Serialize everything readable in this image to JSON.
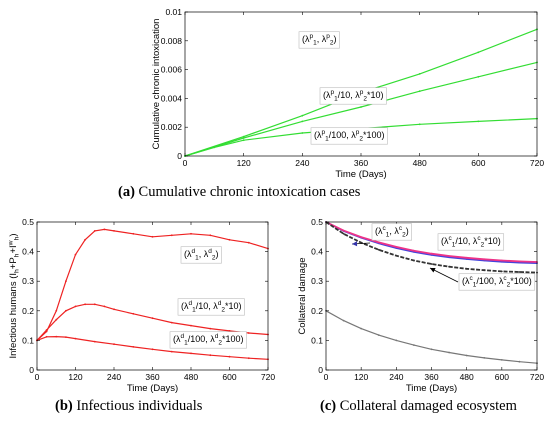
{
  "chart_data": [
    {
      "panel": "a",
      "type": "line",
      "caption_letter": "(a)",
      "caption_text": "Cumulative chronic intoxication cases",
      "xlabel": "Time (Days)",
      "ylabel": "Cumulative chronic intoxication",
      "xlim": [
        0,
        720
      ],
      "ylim": [
        0,
        0.01
      ],
      "xticks": [
        "0",
        "120",
        "240",
        "360",
        "480",
        "600",
        "720"
      ],
      "yticks": [
        "0",
        "0.002",
        "0.004",
        "0.006",
        "0.008",
        "0.01"
      ],
      "grid": false,
      "series": [
        {
          "label": {
            "pre": "(λ",
            "sup1": "p",
            "sub1": "1",
            "mid": ", λ",
            "sup2": "p",
            "sub2": "2",
            "post": ")"
          },
          "color": "#33dd33",
          "x": [
            0,
            120,
            240,
            360,
            480,
            600,
            720
          ],
          "y": [
            0,
            0.00135,
            0.0028,
            0.0044,
            0.0057,
            0.0072,
            0.0088
          ]
        },
        {
          "label": {
            "pre": "(λ",
            "sup1": "p",
            "sub1": "1",
            "mid": "/10, λ",
            "sup2": "p",
            "sub2": "2",
            "post": "*10)"
          },
          "color": "#33dd33",
          "x": [
            0,
            120,
            240,
            360,
            480,
            600,
            720
          ],
          "y": [
            0,
            0.00125,
            0.0024,
            0.0034,
            0.0045,
            0.0055,
            0.0065
          ]
        },
        {
          "label": {
            "pre": "(λ",
            "sup1": "p",
            "sub1": "1",
            "mid": "/100, λ",
            "sup2": "p",
            "sub2": "2",
            "post": "*100)"
          },
          "color": "#33dd33",
          "x": [
            0,
            60,
            120,
            240,
            360,
            480,
            600,
            720
          ],
          "y": [
            0,
            0.0006,
            0.0011,
            0.0016,
            0.0019,
            0.0022,
            0.0024,
            0.0026
          ]
        }
      ]
    },
    {
      "panel": "b",
      "type": "line",
      "caption_letter": "(b)",
      "caption_text": "Infectious individuals",
      "xlabel": "Time (Days)",
      "ylabel": "Infectious humans (I_h+P_h+I_h^w)",
      "xlim": [
        0,
        720
      ],
      "ylim": [
        0,
        0.5
      ],
      "xticks": [
        "0",
        "120",
        "240",
        "360",
        "480",
        "600",
        "720"
      ],
      "yticks": [
        "0",
        "0.1",
        "0.2",
        "0.3",
        "0.4",
        "0.5"
      ],
      "grid": false,
      "series": [
        {
          "label": {
            "pre": "(λ",
            "sup1": "d",
            "sub1": "1",
            "mid": ", λ",
            "sup2": "d",
            "sub2": "2",
            "post": ")"
          },
          "color": "#ee2222",
          "x": [
            0,
            30,
            60,
            90,
            120,
            150,
            180,
            210,
            240,
            300,
            360,
            420,
            480,
            540,
            600,
            660,
            720
          ],
          "y": [
            0.1,
            0.13,
            0.2,
            0.3,
            0.39,
            0.44,
            0.47,
            0.475,
            0.47,
            0.46,
            0.45,
            0.455,
            0.46,
            0.455,
            0.44,
            0.43,
            0.41
          ]
        },
        {
          "label": {
            "pre": "(λ",
            "sup1": "d",
            "sub1": "1",
            "mid": "/10, λ",
            "sup2": "d",
            "sub2": "2",
            "post": "*10)"
          },
          "color": "#ee2222",
          "x": [
            0,
            30,
            60,
            90,
            120,
            150,
            180,
            210,
            240,
            300,
            360,
            420,
            480,
            540,
            600,
            660,
            720
          ],
          "y": [
            0.1,
            0.135,
            0.17,
            0.2,
            0.215,
            0.222,
            0.222,
            0.215,
            0.205,
            0.19,
            0.175,
            0.16,
            0.15,
            0.14,
            0.132,
            0.125,
            0.12
          ]
        },
        {
          "label": {
            "pre": "(λ",
            "sup1": "d",
            "sub1": "1",
            "mid": "/100, λ",
            "sup2": "d",
            "sub2": "2",
            "post": "*100)"
          },
          "color": "#ee2222",
          "x": [
            0,
            30,
            60,
            90,
            120,
            180,
            240,
            300,
            360,
            420,
            480,
            540,
            600,
            660,
            720
          ],
          "y": [
            0.1,
            0.112,
            0.113,
            0.111,
            0.106,
            0.096,
            0.087,
            0.078,
            0.07,
            0.062,
            0.056,
            0.05,
            0.045,
            0.04,
            0.036
          ]
        }
      ]
    },
    {
      "panel": "c",
      "type": "line",
      "caption_letter": "(c)",
      "caption_text": "Collateral damaged ecosystem",
      "xlabel": "Time (Days)",
      "ylabel": "Collateral damage",
      "xlim": [
        0,
        720
      ],
      "ylim": [
        0,
        0.5
      ],
      "xticks": [
        "0",
        "120",
        "240",
        "360",
        "480",
        "600",
        "720"
      ],
      "yticks": [
        "0",
        "0.1",
        "0.2",
        "0.3",
        "0.4",
        "0.5"
      ],
      "grid": false,
      "series": [
        {
          "label": {
            "pre": "(λ",
            "sup1": "c",
            "sub1": "1",
            "mid": ", λ",
            "sup2": "c",
            "sub2": "2",
            "post": ")"
          },
          "color": "#4444dd",
          "x": [
            0,
            60,
            120,
            180,
            240,
            300,
            360,
            420,
            480,
            540,
            600,
            660,
            720
          ],
          "y": [
            0.5,
            0.47,
            0.447,
            0.428,
            0.412,
            0.399,
            0.389,
            0.381,
            0.375,
            0.37,
            0.366,
            0.363,
            0.361
          ]
        },
        {
          "label": {
            "pre": "(λ",
            "sup1": "c",
            "sub1": "1",
            "mid": "/10, λ",
            "sup2": "c",
            "sub2": "2",
            "post": "*10)"
          },
          "color": "#ee3388",
          "x": [
            0,
            60,
            120,
            180,
            240,
            300,
            360,
            420,
            480,
            540,
            600,
            660,
            720
          ],
          "y": [
            0.5,
            0.471,
            0.449,
            0.431,
            0.416,
            0.403,
            0.393,
            0.385,
            0.379,
            0.374,
            0.37,
            0.367,
            0.365
          ]
        },
        {
          "label": {
            "pre": "(λ",
            "sup1": "c",
            "sub1": "1",
            "mid": "/100, λ",
            "sup2": "c",
            "sub2": "2",
            "post": "*100)"
          },
          "color": "#333333",
          "x": [
            0,
            60,
            120,
            180,
            240,
            300,
            360,
            420,
            480,
            540,
            600,
            660,
            720
          ],
          "y": [
            0.5,
            0.46,
            0.43,
            0.406,
            0.386,
            0.37,
            0.358,
            0.349,
            0.342,
            0.337,
            0.333,
            0.331,
            0.329
          ]
        },
        {
          "color": "#777777",
          "x": [
            0,
            60,
            120,
            180,
            240,
            300,
            360,
            420,
            480,
            540,
            600,
            660,
            720
          ],
          "y": [
            0.2,
            0.167,
            0.14,
            0.118,
            0.1,
            0.084,
            0.07,
            0.059,
            0.049,
            0.041,
            0.034,
            0.028,
            0.023
          ]
        }
      ]
    }
  ]
}
